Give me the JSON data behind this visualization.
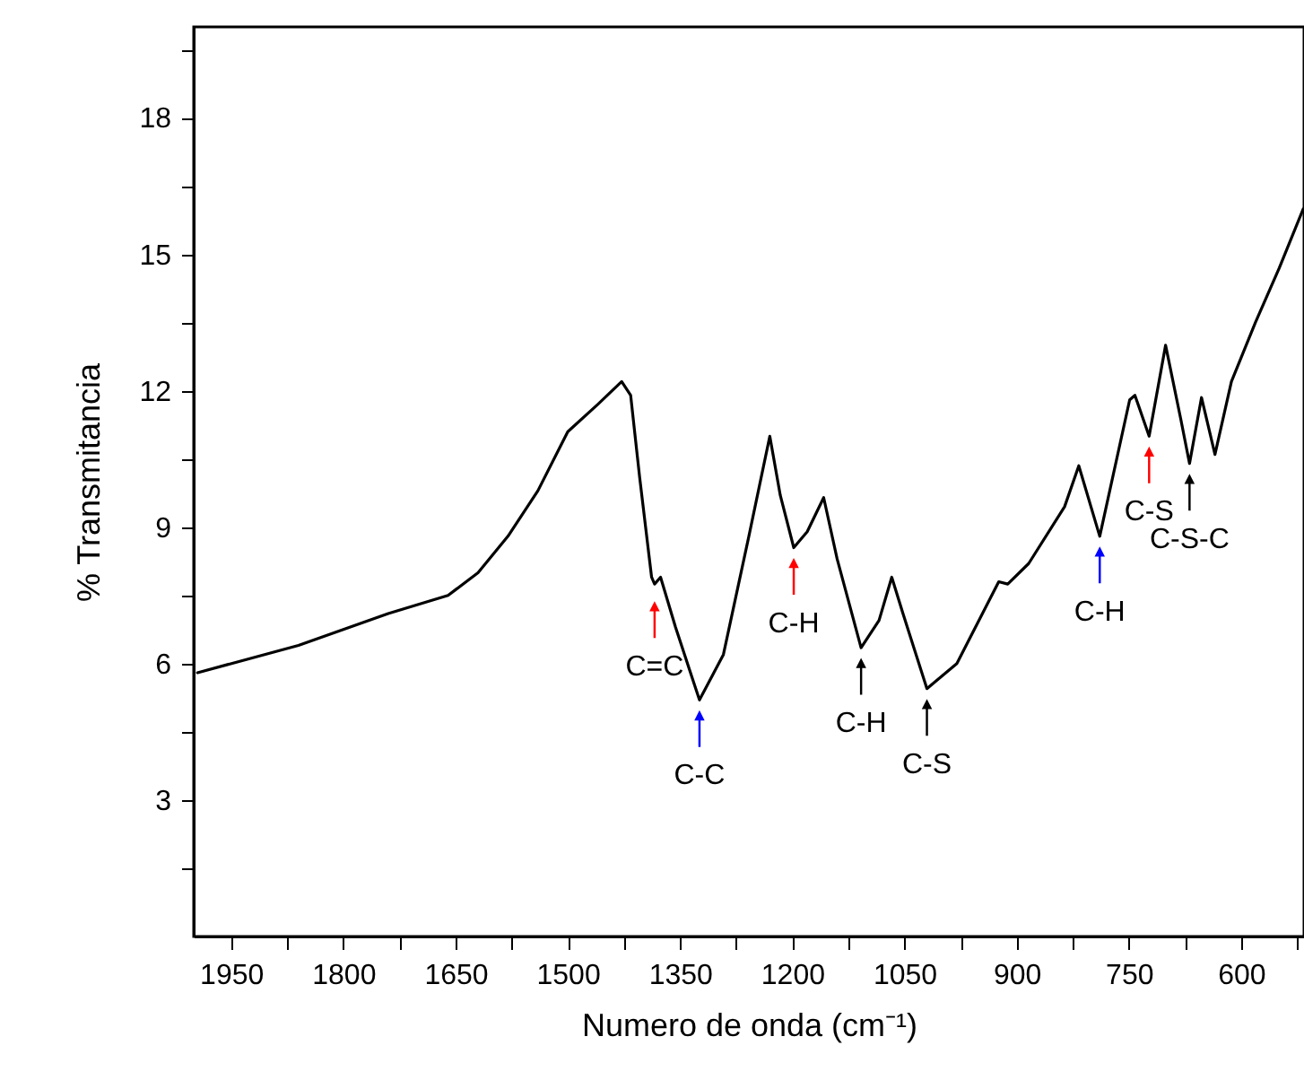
{
  "chart_data": {
    "type": "line",
    "xlabel": "Numero de onda (cm⁻¹)",
    "ylabel": "% Transmitancia",
    "xlim": [
      2000,
      516
    ],
    "ylim": [
      0,
      20
    ],
    "xticks": [
      {
        "value": 1950,
        "label": "1950"
      },
      {
        "value": 1875,
        "label": null
      },
      {
        "value": 1800,
        "label": "1800"
      },
      {
        "value": 1725,
        "label": null
      },
      {
        "value": 1650,
        "label": "1650"
      },
      {
        "value": 1575,
        "label": null
      },
      {
        "value": 1500,
        "label": "1500"
      },
      {
        "value": 1425,
        "label": null
      },
      {
        "value": 1350,
        "label": "1350"
      },
      {
        "value": 1275,
        "label": null
      },
      {
        "value": 1200,
        "label": "1200"
      },
      {
        "value": 1125,
        "label": null
      },
      {
        "value": 1050,
        "label": "1050"
      },
      {
        "value": 975,
        "label": null
      },
      {
        "value": 900,
        "label": "900"
      },
      {
        "value": 825,
        "label": null
      },
      {
        "value": 750,
        "label": "750"
      },
      {
        "value": 675,
        "label": null
      },
      {
        "value": 600,
        "label": "600"
      },
      {
        "value": 525,
        "label": null
      }
    ],
    "yticks": [
      {
        "value": 1.5,
        "label": null
      },
      3,
      {
        "value": 4.5,
        "label": null
      },
      6,
      {
        "value": 7.5,
        "label": null
      },
      9,
      {
        "value": 10.5,
        "label": null
      },
      12,
      {
        "value": 13.5,
        "label": null
      },
      15,
      {
        "value": 16.5,
        "label": null
      },
      18,
      {
        "value": 19.5,
        "label": null
      }
    ],
    "grid": false,
    "marker": "none",
    "line_style": "solid",
    "series": [
      {
        "color": "#000000",
        "x": [
          1995,
          1860,
          1740,
          1660,
          1620,
          1580,
          1540,
          1500,
          1460,
          1428,
          1416,
          1404,
          1388,
          1384,
          1376,
          1356,
          1324,
          1292,
          1258,
          1230,
          1216,
          1198,
          1180,
          1158,
          1140,
          1108,
          1084,
          1067,
          1052,
          1020,
          980,
          924,
          912,
          884,
          836,
          817,
          789,
          749,
          742,
          723,
          701,
          681,
          669,
          653,
          635,
          613,
          581,
          549,
          517
        ],
        "values": [
          5.8,
          6.4,
          7.1,
          7.5,
          8.0,
          8.8,
          9.8,
          11.1,
          11.7,
          12.2,
          11.9,
          10.1,
          7.9,
          7.75,
          7.9,
          6.8,
          5.2,
          6.2,
          8.8,
          11.0,
          9.7,
          8.55,
          8.9,
          9.65,
          8.3,
          6.35,
          6.95,
          7.9,
          7.1,
          5.45,
          6.0,
          7.8,
          7.75,
          8.2,
          9.45,
          10.35,
          8.8,
          11.8,
          11.9,
          11.0,
          13.0,
          11.4,
          10.4,
          11.85,
          10.6,
          12.2,
          13.5,
          14.7,
          16.0
        ]
      }
    ],
    "annotations": [
      {
        "text": "C=C",
        "x": 1384,
        "y": 7.6
      },
      {
        "text": "C-C",
        "x": 1324,
        "y": 5.2
      },
      {
        "text": "C-H",
        "x": 1198,
        "y": 8.55
      },
      {
        "text": "C-H",
        "x": 1108,
        "y": 6.35
      },
      {
        "text": "C-S",
        "x": 1020,
        "y": 5.45
      },
      {
        "text": "C-H",
        "x": 789,
        "y": 8.8
      },
      {
        "text": "C-S",
        "x": 723,
        "y": 11.0
      },
      {
        "text": "C-S-C",
        "x": 669,
        "y": 10.4
      }
    ]
  }
}
